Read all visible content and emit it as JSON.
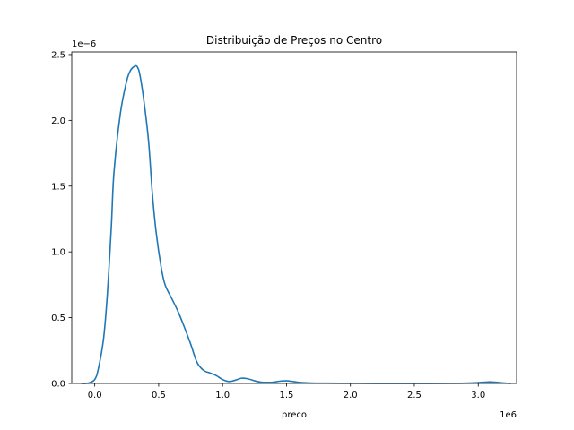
{
  "chart_data": {
    "type": "line",
    "title": "Distribuição de Preços no Centro",
    "xlabel": "preco",
    "ylabel": "",
    "x_offset_label": "1e6",
    "y_offset_label": "1e−6",
    "xlim": [
      -0.18,
      3.3
    ],
    "ylim": [
      0,
      2.52
    ],
    "x_ticks": [
      0.0,
      0.5,
      1.0,
      1.5,
      2.0,
      2.5,
      3.0
    ],
    "x_tick_labels": [
      "0.0",
      "0.5",
      "1.0",
      "1.5",
      "2.0",
      "2.5",
      "3.0"
    ],
    "y_ticks": [
      0.0,
      0.5,
      1.0,
      1.5,
      2.0,
      2.5
    ],
    "y_tick_labels": [
      "0.0",
      "0.5",
      "1.0",
      "1.5",
      "2.0",
      "2.5"
    ],
    "grid": false,
    "legend": false,
    "series": [
      {
        "color": "#1f77b4",
        "x": [
          -0.1,
          -0.05,
          0.0,
          0.03,
          0.07,
          0.1,
          0.13,
          0.15,
          0.2,
          0.25,
          0.28,
          0.31,
          0.33,
          0.35,
          0.38,
          0.42,
          0.45,
          0.48,
          0.52,
          0.55,
          0.6,
          0.65,
          0.7,
          0.75,
          0.8,
          0.85,
          0.9,
          0.95,
          1.0,
          1.05,
          1.1,
          1.15,
          1.2,
          1.25,
          1.3,
          1.35,
          1.4,
          1.45,
          1.5,
          1.55,
          1.6,
          1.7,
          1.8,
          2.0,
          2.2,
          2.5,
          2.8,
          2.95,
          3.05,
          3.1,
          3.15,
          3.25
        ],
        "y": [
          0.0,
          0.003,
          0.03,
          0.12,
          0.35,
          0.7,
          1.2,
          1.6,
          2.05,
          2.3,
          2.38,
          2.41,
          2.41,
          2.36,
          2.18,
          1.85,
          1.45,
          1.15,
          0.88,
          0.75,
          0.65,
          0.55,
          0.43,
          0.3,
          0.16,
          0.1,
          0.08,
          0.06,
          0.03,
          0.015,
          0.025,
          0.04,
          0.035,
          0.02,
          0.01,
          0.008,
          0.01,
          0.018,
          0.02,
          0.015,
          0.008,
          0.003,
          0.002,
          0.001,
          0.0005,
          0.0005,
          0.001,
          0.004,
          0.01,
          0.012,
          0.008,
          0.0
        ]
      }
    ]
  }
}
